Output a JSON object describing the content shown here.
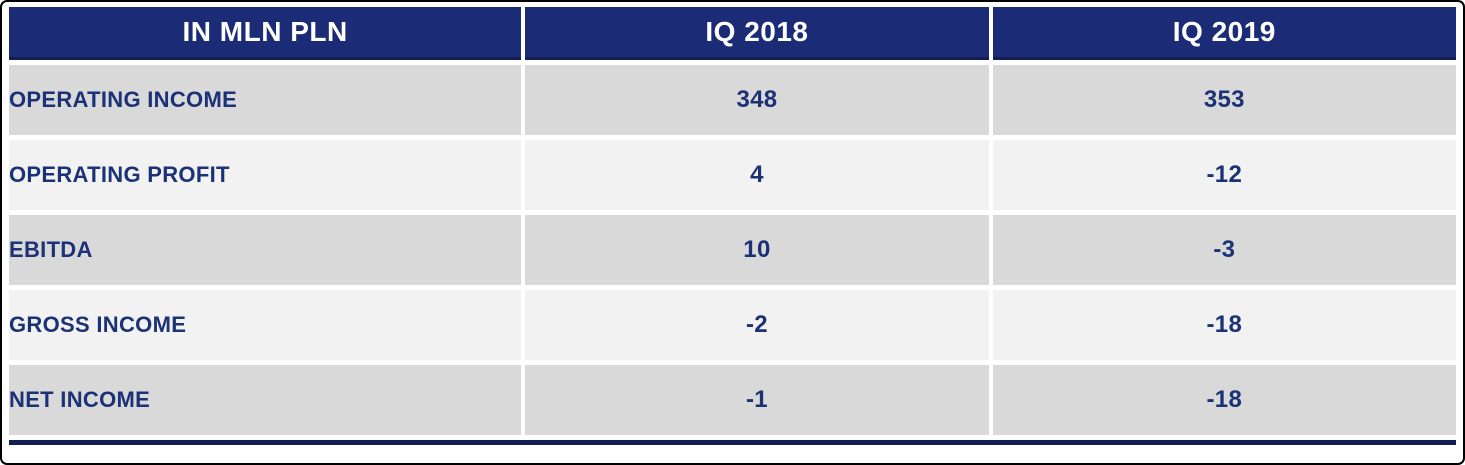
{
  "chart_data": {
    "type": "table",
    "title": "IN MLN PLN",
    "columns": [
      "IN MLN PLN",
      "IQ 2018",
      "IQ 2019"
    ],
    "rows": [
      {
        "label": "OPERATING INCOME",
        "values": [
          "348",
          "353"
        ]
      },
      {
        "label": "OPERATING PROFIT",
        "values": [
          "4",
          "-12"
        ]
      },
      {
        "label": "EBITDA",
        "values": [
          "10",
          "-3"
        ]
      },
      {
        "label": "GROSS INCOME",
        "values": [
          "-2",
          "-18"
        ]
      },
      {
        "label": "NET INCOME",
        "values": [
          "-1",
          "-18"
        ]
      }
    ]
  },
  "colors": {
    "header_bg": "#1c2b75",
    "header_border": "#141e52",
    "row_dark": "#d9d9d9",
    "row_light": "#f2f2f2",
    "text_navy": "#1c3276",
    "header_text": "#ffffff",
    "frame_border": "#000000"
  }
}
